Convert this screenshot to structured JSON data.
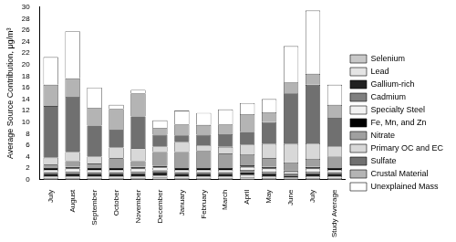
{
  "chart_data": {
    "type": "bar",
    "stacked": true,
    "legend": "right",
    "grid": false,
    "y_label": "Average Source Contribution, μg/m³",
    "ylim": [
      0,
      30
    ],
    "yticks": [
      0,
      2,
      4,
      6,
      8,
      10,
      12,
      14,
      16,
      18,
      20,
      22,
      24,
      26,
      28,
      30
    ],
    "categories": [
      "July",
      "August",
      "September",
      "October",
      "November",
      "December",
      "January",
      "February",
      "March",
      "April",
      "May",
      "June",
      "July",
      "Study Average"
    ],
    "series": [
      {
        "name": "Selenium",
        "color": "#c8c8c8",
        "values": [
          0.3,
          0.3,
          0.3,
          0.3,
          0.3,
          0.4,
          0.3,
          0.3,
          0.3,
          0.4,
          0.3,
          0.2,
          0.3,
          0.3
        ]
      },
      {
        "name": "Lead",
        "color": "#e4e4e4",
        "values": [
          0.3,
          0.3,
          0.3,
          0.3,
          0.3,
          0.3,
          0.3,
          0.3,
          0.3,
          0.4,
          0.3,
          0.2,
          0.3,
          0.3
        ]
      },
      {
        "name": "Gallium-rich",
        "color": "#202020",
        "values": [
          0.4,
          0.5,
          0.4,
          0.4,
          0.5,
          0.5,
          0.4,
          0.4,
          0.4,
          0.5,
          0.5,
          0.3,
          0.5,
          0.4
        ]
      },
      {
        "name": "Cadmium",
        "color": "#808080",
        "values": [
          0.3,
          0.3,
          0.3,
          0.3,
          0.3,
          0.4,
          0.3,
          0.3,
          0.3,
          0.4,
          0.3,
          0.3,
          0.3,
          0.3
        ]
      },
      {
        "name": "Specialty Steel",
        "color": "#f2f2f2",
        "values": [
          0.4,
          0.5,
          0.4,
          0.4,
          0.5,
          0.5,
          0.4,
          0.4,
          0.4,
          0.5,
          0.5,
          0.4,
          0.5,
          0.4
        ]
      },
      {
        "name": "Fe, Mn, and Zn",
        "color": "#000000",
        "values": [
          0.3,
          0.3,
          0.3,
          0.3,
          0.3,
          0.3,
          0.3,
          0.3,
          0.3,
          0.3,
          0.3,
          0.2,
          0.3,
          0.3
        ]
      },
      {
        "name": "Nitrate",
        "color": "#a0a0a0",
        "values": [
          0.6,
          1.0,
          0.8,
          1.7,
          1.0,
          2.4,
          2.8,
          3.0,
          2.5,
          1.9,
          1.5,
          1.4,
          1.4,
          2.0
        ]
      },
      {
        "name": "Primary OC and EC",
        "color": "#d8d8d8",
        "values": [
          1.2,
          1.6,
          1.2,
          1.9,
          2.3,
          1.0,
          1.7,
          1.0,
          1.2,
          1.7,
          2.5,
          3.2,
          2.7,
          1.8
        ]
      },
      {
        "name": "Sulfate",
        "color": "#707070",
        "values": [
          9.0,
          9.6,
          5.4,
          3.1,
          5.5,
          2.0,
          1.2,
          1.8,
          2.2,
          2.2,
          3.8,
          8.8,
          10.2,
          4.9
        ]
      },
      {
        "name": "Crustal Material",
        "color": "#b4b4b4",
        "values": [
          3.7,
          3.2,
          3.1,
          3.6,
          4.0,
          1.2,
          1.9,
          1.7,
          1.7,
          3.1,
          1.7,
          1.9,
          1.9,
          2.3
        ]
      },
      {
        "name": "Unexplained Mass",
        "color": "#ffffff",
        "values": [
          4.8,
          8.2,
          3.5,
          0.7,
          0.6,
          1.3,
          2.4,
          2.1,
          2.6,
          1.9,
          2.3,
          6.3,
          11.0,
          3.5
        ]
      }
    ]
  }
}
